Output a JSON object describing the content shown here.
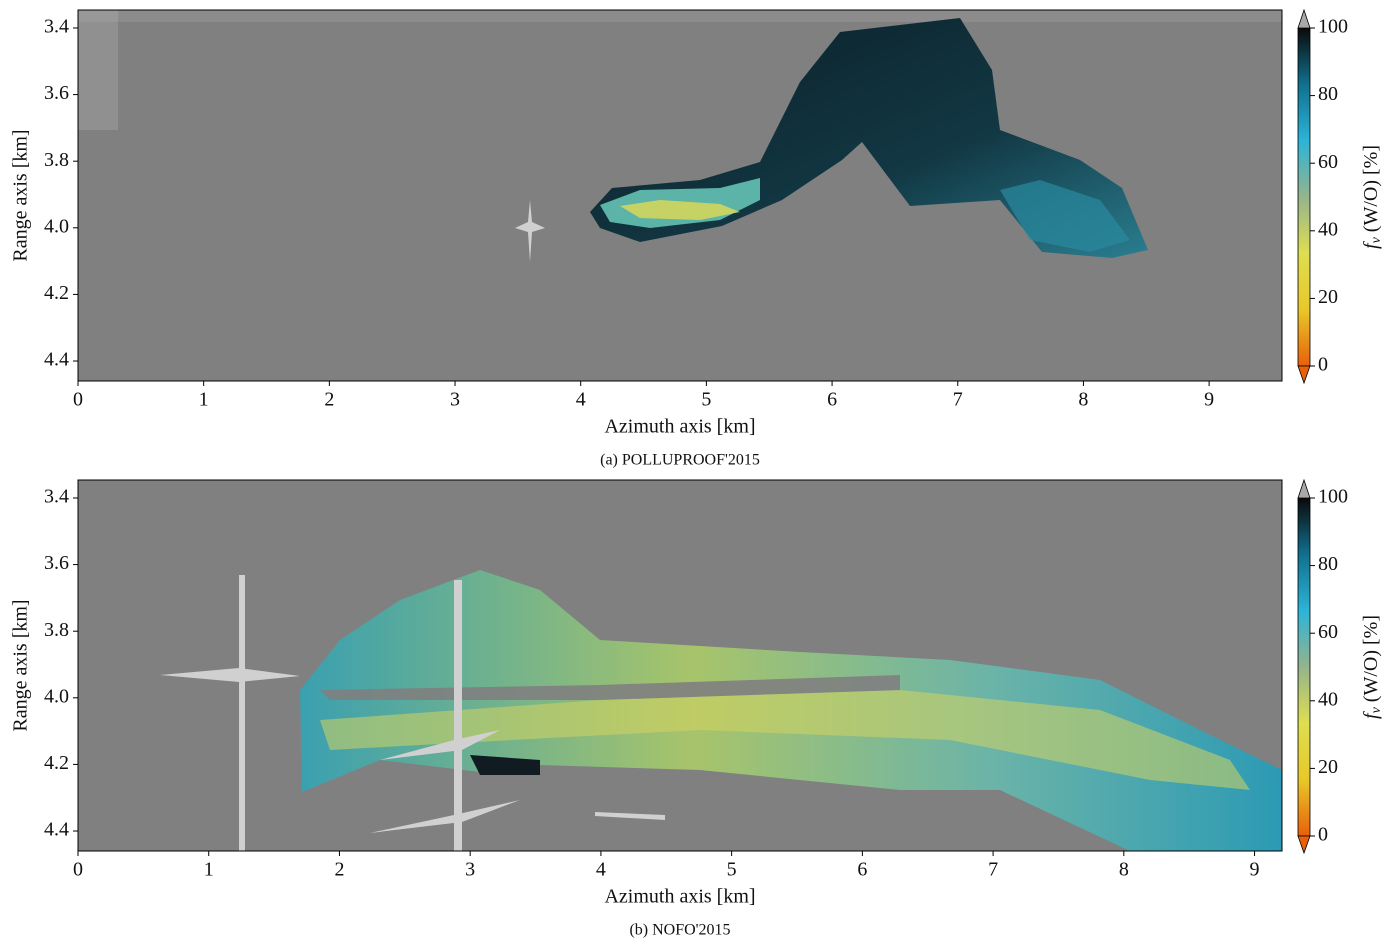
{
  "chart_data": [
    {
      "type": "heatmap",
      "caption": "(a) POLLUPROOF'2015",
      "xlabel": "Azimuth axis [km]",
      "ylabel": "Range axis [km]",
      "xlim": [
        0,
        9.58
      ],
      "xticks": [
        0,
        1,
        2,
        3,
        4,
        5,
        6,
        7,
        8,
        9
      ],
      "ylim": [
        4.46,
        3.346
      ],
      "yticks": [
        3.4,
        3.6,
        3.8,
        {
          "value": 4,
          "label": "4.0"
        },
        4.2,
        4.4
      ],
      "colorbar": {
        "label_main": "f",
        "label_sub": "v",
        "label_rest": " (W/O) [%]",
        "lim": [
          0,
          100
        ],
        "ticks": [
          0,
          20,
          40,
          60,
          80,
          100
        ],
        "colors": [
          "#e8600a",
          "#e8c828",
          "#dede50",
          "#94b48c",
          "#2cb4d8",
          "#10708e",
          "#0a0a0a"
        ],
        "over_color": "#a8a8a8",
        "under_color": "#e8600a"
      }
    },
    {
      "type": "heatmap",
      "caption": "(b) NOFO'2015",
      "xlabel": "Azimuth axis [km]",
      "ylabel": "Range axis [km]",
      "xlim": [
        0,
        9.21
      ],
      "xticks": [
        0,
        1,
        2,
        3,
        4,
        5,
        6,
        7,
        8,
        9
      ],
      "ylim": [
        4.46,
        3.346
      ],
      "yticks": [
        3.4,
        3.6,
        3.8,
        {
          "value": 4,
          "label": "4.0"
        },
        4.2,
        4.4
      ],
      "colorbar": {
        "label_main": "f",
        "label_sub": "v",
        "label_rest": " (W/O) [%]",
        "lim": [
          0,
          100
        ],
        "ticks": [
          0,
          20,
          40,
          60,
          80,
          100
        ],
        "colors": [
          "#e8600a",
          "#e8c828",
          "#dede50",
          "#94b48c",
          "#2cb4d8",
          "#10708e",
          "#0a0a0a"
        ],
        "over_color": "#a8a8a8",
        "under_color": "#e8600a"
      }
    }
  ]
}
